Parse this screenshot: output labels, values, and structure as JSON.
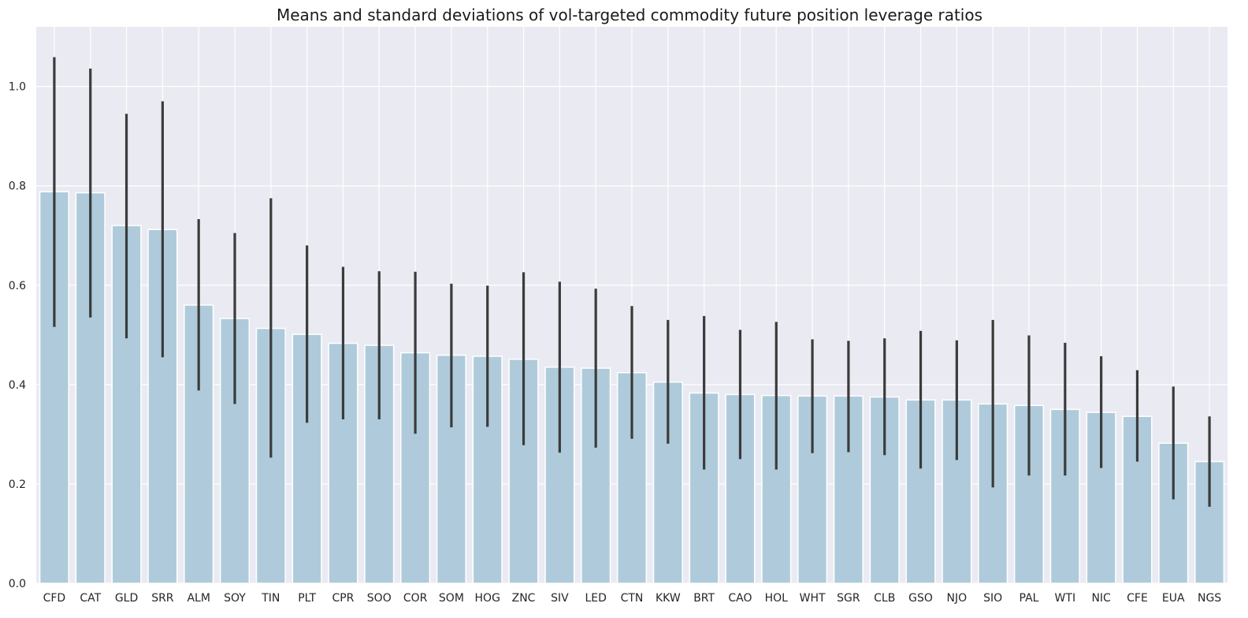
{
  "chart_data": {
    "type": "bar",
    "title": "Means and standard deviations of vol-targeted commodity future position leverage ratios",
    "xlabel": "",
    "ylabel": "",
    "ylim": [
      0,
      1.12
    ],
    "yticks": [
      "0.0",
      "0.2",
      "0.4",
      "0.6",
      "0.8",
      "1.0"
    ],
    "grid": true,
    "bar_color": "#AFCBDB",
    "errorbar_color": "#3B3B3B",
    "background_color": "#EAEAF2",
    "categories": [
      "CFD",
      "CAT",
      "GLD",
      "SRR",
      "ALM",
      "SOY",
      "TIN",
      "PLT",
      "CPR",
      "SOO",
      "COR",
      "SOM",
      "HOG",
      "ZNC",
      "SIV",
      "LED",
      "CTN",
      "KKW",
      "BRT",
      "CAO",
      "HOL",
      "WHT",
      "SGR",
      "CLB",
      "GSO",
      "NJO",
      "SIO",
      "PAL",
      "WTI",
      "NIC",
      "CFE",
      "EUA",
      "NGS"
    ],
    "values": [
      0.788,
      0.786,
      0.72,
      0.712,
      0.56,
      0.533,
      0.513,
      0.501,
      0.483,
      0.479,
      0.464,
      0.459,
      0.457,
      0.451,
      0.435,
      0.433,
      0.424,
      0.405,
      0.383,
      0.38,
      0.378,
      0.377,
      0.377,
      0.375,
      0.369,
      0.369,
      0.361,
      0.358,
      0.35,
      0.344,
      0.336,
      0.282,
      0.245
    ],
    "error_low": [
      0.516,
      0.535,
      0.493,
      0.455,
      0.388,
      0.361,
      0.253,
      0.323,
      0.33,
      0.33,
      0.301,
      0.314,
      0.315,
      0.278,
      0.263,
      0.273,
      0.291,
      0.281,
      0.229,
      0.25,
      0.229,
      0.262,
      0.264,
      0.258,
      0.231,
      0.248,
      0.193,
      0.217,
      0.217,
      0.232,
      0.245,
      0.169,
      0.154
    ],
    "error_high": [
      1.059,
      1.036,
      0.945,
      0.97,
      0.733,
      0.705,
      0.775,
      0.68,
      0.637,
      0.628,
      0.627,
      0.603,
      0.599,
      0.626,
      0.607,
      0.593,
      0.558,
      0.53,
      0.538,
      0.51,
      0.526,
      0.491,
      0.488,
      0.493,
      0.508,
      0.489,
      0.53,
      0.499,
      0.484,
      0.457,
      0.429,
      0.396,
      0.336
    ]
  }
}
